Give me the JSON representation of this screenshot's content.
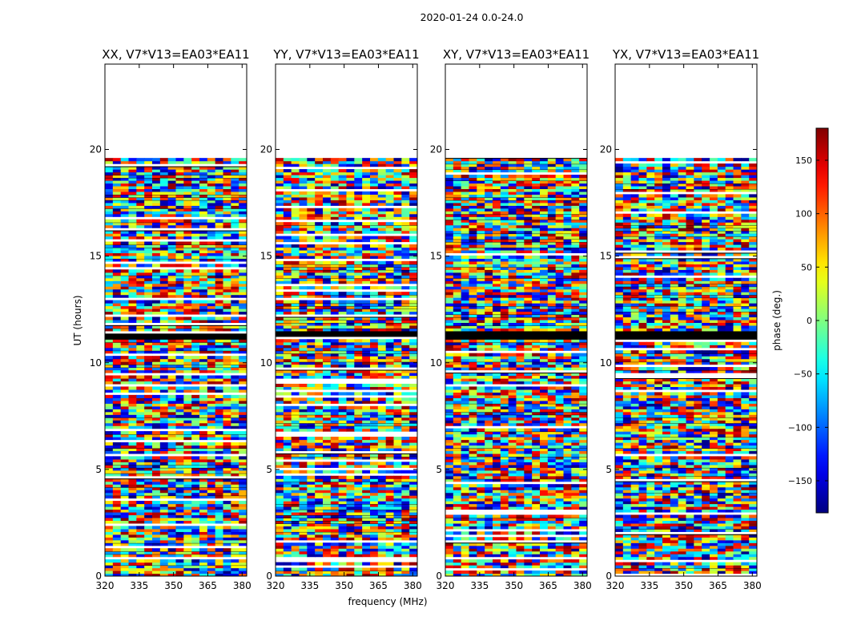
{
  "chart_data": {
    "type": "heatmap",
    "suptitle": "2020-01-24 0.0-24.0",
    "xlabel": "frequency (MHz)",
    "ylabel": "UT (hours)",
    "xlim": [
      320,
      382
    ],
    "ylim": [
      0,
      24
    ],
    "xticks": [
      320,
      335,
      350,
      365,
      380
    ],
    "yticks": [
      0,
      5,
      10,
      15,
      20
    ],
    "panels": [
      {
        "title": "XX, V7*V13=EA03*EA11",
        "pol": "XX"
      },
      {
        "title": "YY, V7*V13=EA03*EA11",
        "pol": "YY"
      },
      {
        "title": "XY, V7*V13=EA03*EA11",
        "pol": "XY"
      },
      {
        "title": "YX, V7*V13=EA03*EA11",
        "pol": "YX"
      }
    ],
    "data_extent_ut": [
      0,
      19.6
    ],
    "blank_region_ut": [
      19.6,
      24
    ],
    "flagged_band_ut": [
      11.1,
      11.5
    ],
    "colorbar": {
      "label": "phase (deg.)",
      "range": [
        -180,
        180
      ],
      "ticks": [
        150,
        100,
        50,
        0,
        -50,
        -100,
        -150
      ],
      "tick_labels": [
        "150",
        "100",
        "50",
        "0",
        "−50",
        "−100",
        "−150"
      ],
      "colormap": "jet"
    }
  }
}
